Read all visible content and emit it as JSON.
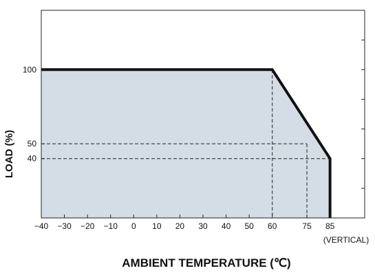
{
  "chart_data": {
    "type": "area",
    "xlabel": "AMBIENT TEMPERATURE (℃)",
    "ylabel": "LOAD (%)",
    "x_ticks": [
      -40,
      -30,
      -20,
      -10,
      0,
      10,
      20,
      30,
      40,
      50,
      60,
      75,
      85
    ],
    "y_ticks": [
      40,
      50,
      100
    ],
    "x_note": "(VERTICAL)",
    "xlim": [
      -40,
      100
    ],
    "ylim": [
      0,
      140
    ],
    "series": [
      {
        "x": [
          -40,
          60,
          85,
          85
        ],
        "y": [
          100,
          100,
          40,
          0
        ]
      }
    ],
    "guides": [
      {
        "from": [
          -40,
          50
        ],
        "to": [
          75,
          50
        ]
      },
      {
        "from": [
          -40,
          40
        ],
        "to": [
          85,
          40
        ]
      },
      {
        "from": [
          60,
          100
        ],
        "to": [
          60,
          0
        ]
      },
      {
        "from": [
          75,
          50
        ],
        "to": [
          75,
          0
        ]
      }
    ],
    "colors": {
      "fill": "#d4dde5",
      "line": "#111111",
      "frame": "#222222",
      "guide": "#222222"
    },
    "grid": false
  }
}
